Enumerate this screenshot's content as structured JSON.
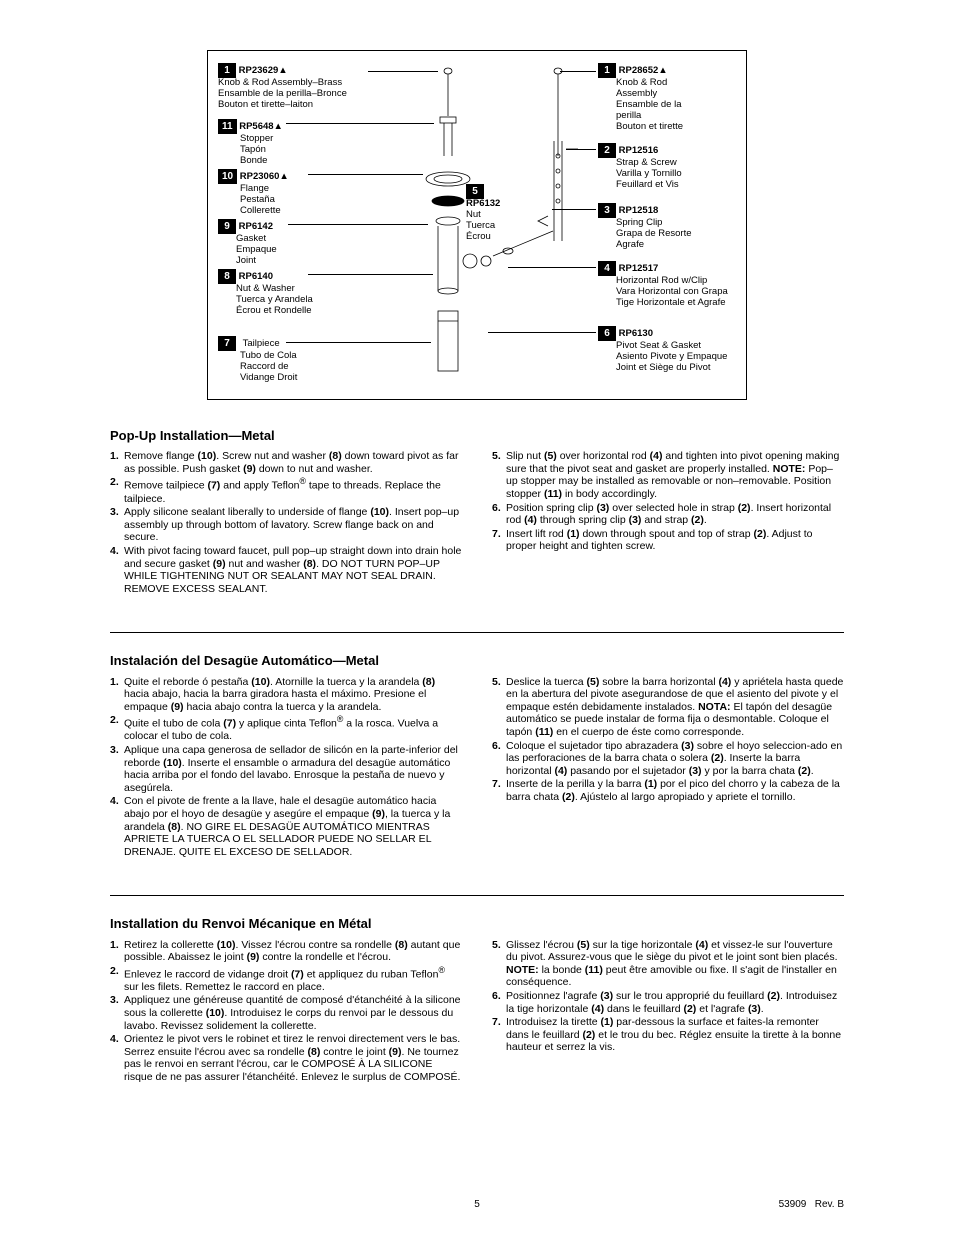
{
  "parts": {
    "p1L": {
      "num": "1",
      "code": "RP23629▲",
      "lines": [
        "Knob & Rod Assembly–Brass",
        "Ensamble de la perilla–Bronce",
        "Bouton et tirette–laiton"
      ]
    },
    "p1R": {
      "num": "1",
      "code": "RP28652▲",
      "lines": [
        "Knob & Rod",
        "Assembly",
        "Ensamble de la",
        "perilla",
        "Bouton et tirette"
      ]
    },
    "p11": {
      "num": "11",
      "code": "RP5648▲",
      "lines": [
        "Stopper",
        "Tapón",
        "Bonde"
      ]
    },
    "p2": {
      "num": "2",
      "code": "RP12516",
      "lines": [
        "Strap & Screw",
        "Varilla y Tornillo",
        "Feuillard et Vis"
      ]
    },
    "p10": {
      "num": "10",
      "code": "RP23060▲",
      "lines": [
        "Flange",
        "Pestaña",
        "Collerette"
      ]
    },
    "p5": {
      "num": "5",
      "code": "RP6132",
      "lines": [
        "Nut",
        "Tuerca",
        "Écrou"
      ]
    },
    "p3": {
      "num": "3",
      "code": "RP12518",
      "lines": [
        "Spring Clip",
        "Grapa de Resorte",
        "Agrafe"
      ]
    },
    "p9": {
      "num": "9",
      "code": "RP6142",
      "lines": [
        "Gasket",
        "Empaque",
        "Joint"
      ]
    },
    "p8": {
      "num": "8",
      "code": "RP6140",
      "lines": [
        "Nut & Washer",
        "Tuerca y Arandela",
        "Écrou et Rondelle"
      ]
    },
    "p4": {
      "num": "4",
      "code": "RP12517",
      "lines": [
        "Horizontal Rod w/Clip",
        "Vara Horizontal con Grapa",
        "Tige Horizontale et Agrafe"
      ]
    },
    "p7": {
      "num": "7",
      "code": "",
      "lines": [
        "Tailpiece",
        "Tubo de Cola",
        "Raccord de",
        "Vidange Droit"
      ]
    },
    "p6": {
      "num": "6",
      "code": "RP6130",
      "lines": [
        "Pivot Seat & Gasket",
        "Asiento Pivote y Empaque",
        "Joint et Siège du Pivot"
      ]
    }
  },
  "sections": {
    "en": {
      "title": "Pop-Up Installation—Metal",
      "left": [
        {
          "n": "1.",
          "t": "Remove flange <b>(10)</b>. Screw nut and washer <b>(8)</b> down toward pivot as far as possible. Push gasket <b>(9)</b> down to nut and washer."
        },
        {
          "n": "2.",
          "t": "Remove tailpiece <b>(7)</b> and apply Teflon<sup>®</sup> tape to threads. Replace the tailpiece."
        },
        {
          "n": "3.",
          "t": "Apply silicone sealant liberally to underside of flange <b>(10)</b>. Insert pop–up assembly up through bottom of lavatory. Screw flange back on and secure."
        },
        {
          "n": "4.",
          "t": "With pivot facing toward faucet, pull pop–up straight down into drain hole and secure gasket <b>(9)</b> nut and washer <b>(8)</b>. DO NOT TURN POP–UP WHILE TIGHTENING NUT OR SEALANT MAY NOT SEAL DRAIN. REMOVE EXCESS SEALANT."
        }
      ],
      "right": [
        {
          "n": "5.",
          "t": "Slip nut <b>(5)</b> over horizontal rod <b>(4)</b> and tighten into pivot opening making sure that the pivot seat and gasket are properly installed. <b>NOTE:</b> Pop–up stopper may be installed as removable or non–removable. Position stopper <b>(11)</b> in body accordingly."
        },
        {
          "n": "6.",
          "t": "Position spring clip <b>(3)</b> over selected hole in strap <b>(2)</b>. Insert horizontal rod <b>(4)</b> through spring clip <b>(3)</b> and strap <b>(2)</b>."
        },
        {
          "n": "7.",
          "t": "Insert lift rod <b>(1)</b> down through spout and top of strap <b>(2)</b>. Adjust to proper height and tighten screw."
        }
      ]
    },
    "es": {
      "title": "Instalación del Desagüe Automático—Metal",
      "left": [
        {
          "n": "1.",
          "t": "Quite el reborde ó pestaña <b>(10)</b>. Atornille la tuerca y la arandela <b>(8)</b> hacia abajo, hacia la barra giradora hasta el máximo. Presione el empaque <b>(9)</b> hacia abajo contra la tuerca y la arandela."
        },
        {
          "n": "2.",
          "t": "Quite el tubo de cola <b>(7)</b> y aplique cinta Teflon<sup>®</sup> a la rosca. Vuelva a colocar el tubo de cola."
        },
        {
          "n": "3.",
          "t": "Aplique una capa generosa de sellador de silicón en la parte-inferior del reborde <b>(10)</b>. Inserte el ensamble o armadura del desagüe automático hacia arriba por el fondo del lavabo. Enrosque la pestaña de nuevo y asegúrela."
        },
        {
          "n": "4.",
          "t": "Con el pivote de frente a la llave, hale el desagüe automático hacia abajo por el hoyo de desagüe y asegúre el empaque <b>(9)</b>, la tuerca y la arandela <b>(8)</b>. NO GIRE EL DESAGÜE AUTOMÁTICO MIENTRAS APRIETE LA TUERCA O EL SELLADOR PUEDE NO SELLAR EL DRENAJE. QUITE EL EXCESO DE SELLADOR."
        }
      ],
      "right": [
        {
          "n": "5.",
          "t": "Deslice la tuerca <b>(5)</b> sobre la barra horizontal <b>(4)</b> y apriétela hasta quede en la abertura del pivote asegurandose de que el asiento del pivote y el empaque estén debidamente instalados. <b>NOTA:</b> El tapón del desagüe automático se puede instalar de forma fija o desmontable. Coloque el tapón <b>(11)</b> en el cuerpo de éste como corresponde."
        },
        {
          "n": "6.",
          "t": "Coloque el sujetador tipo abrazadera <b>(3)</b> sobre el hoyo seleccion-ado en las perforaciones de la barra chata o solera <b>(2)</b>. Inserte la barra horizontal <b>(4)</b> pasando por el sujetador <b>(3)</b> y por la barra chata <b>(2)</b>."
        },
        {
          "n": "7.",
          "t": "Inserte de la perilla y la barra <b>(1)</b> por el pico del chorro y la cabeza de la barra chata <b>(2)</b>. Ajústelo al largo apropiado y apriete el tornillo."
        }
      ]
    },
    "fr": {
      "title": "Installation du Renvoi Mécanique en Métal",
      "left": [
        {
          "n": "1.",
          "t": "Retirez la collerette <b>(10)</b>. Vissez l'écrou contre sa rondelle <b>(8)</b> autant que possible. Abaissez le joint <b>(9)</b> contre la rondelle et l'écrou."
        },
        {
          "n": "2.",
          "t": "Enlevez le raccord de vidange droit <b>(7)</b> et appliquez du ruban Teflon<sup>®</sup> sur les filets. Remettez le raccord en place."
        },
        {
          "n": "3.",
          "t": "Appliquez une généreuse quantité de composé d'étanchéité à la silicone sous la collerette <b>(10)</b>. Introduisez le corps du renvoi par le dessous du lavabo. Revissez solidement la collerette."
        },
        {
          "n": "4.",
          "t": "Orientez le pivot vers le robinet et tirez le renvoi directement vers le bas. Serrez ensuite l'écrou avec sa rondelle <b>(8)</b> contre le joint <b>(9)</b>. Ne tournez pas le renvoi en serrant l'écrou, car le COMPOSÉ À LA SILICONE risque de ne pas assurer l'étanchéité. Enlevez le surplus de COMPOSÉ."
        }
      ],
      "right": [
        {
          "n": "5.",
          "t": "Glissez l'écrou <b>(5)</b> sur la tige horizontale <b>(4)</b> et vissez-le sur l'ouverture du pivot. Assurez-vous que le siège du pivot et le joint sont bien placés. <b>NOTE:</b> la bonde <b>(11)</b> peut être amovible ou fixe. Il s'agit de l'installer en conséquence."
        },
        {
          "n": "6.",
          "t": "Positionnez l'agrafe <b>(3)</b> sur le trou approprié du feuillard <b>(2)</b>. Introduisez la tige horizontale <b>(4)</b> dans le feuillard <b>(2)</b> et l'agrafe <b>(3)</b>."
        },
        {
          "n": "7.",
          "t": "Introduisez la tirette <b>(1)</b> par-dessous la surface et faites-la remonter dans le feuillard <b>(2)</b> et le trou du bec. Réglez ensuite la tirette à la bonne hauteur et serrez la vis."
        }
      ]
    }
  },
  "footer": {
    "page": "5",
    "doc": "53909",
    "rev": "Rev. B"
  }
}
